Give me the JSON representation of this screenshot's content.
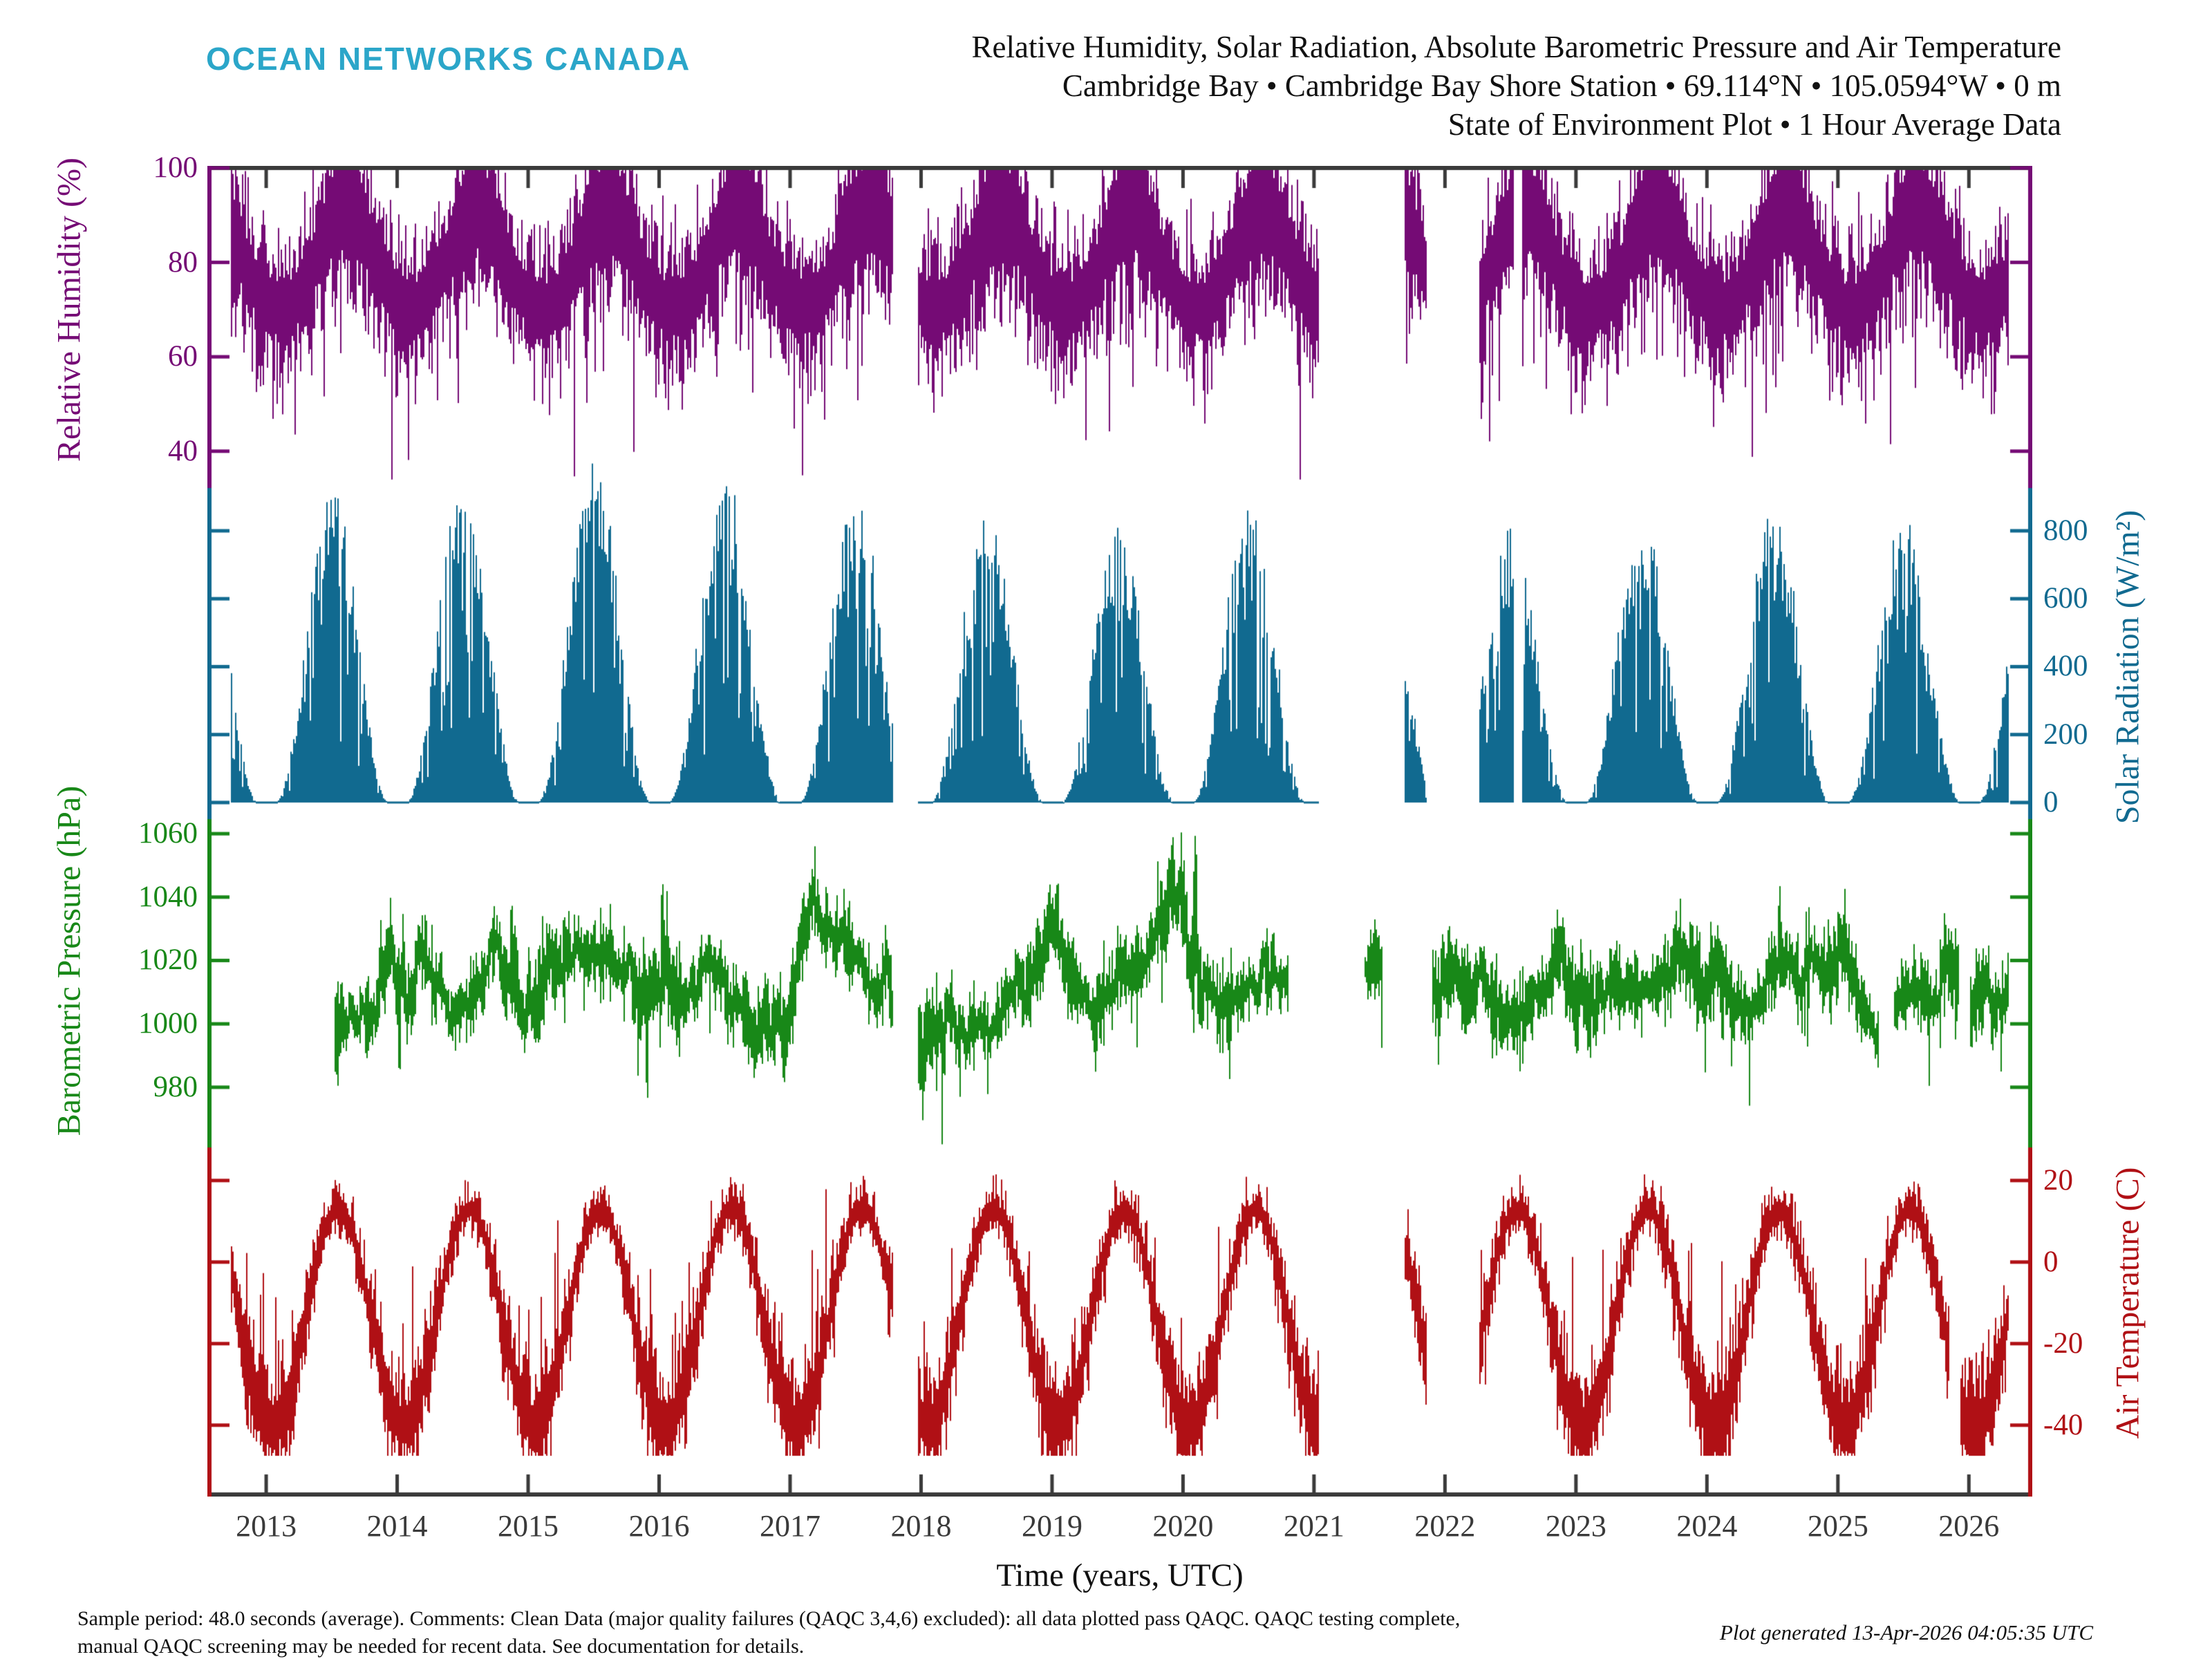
{
  "header": {
    "logo": "OCEAN NETWORKS CANADA",
    "logo_color": "#2BA6C9",
    "title_line1": "Relative Humidity, Solar Radiation, Absolute Barometric Pressure and Air Temperature",
    "title_line2": "Cambridge Bay • Cambridge Bay Shore Station • 69.114°N • 105.0594°W • 0 m",
    "title_line3": "State of Environment Plot • 1 Hour Average Data"
  },
  "footer": {
    "line1": "Sample period: 48.0 seconds (average). Comments: Clean Data (major quality failures (QAQC 3,4,6) excluded): all data plotted pass QAQC. QAQC testing complete,",
    "line2": "manual QAQC screening may be needed for recent data. See documentation for details.",
    "generated": "Plot generated 13-Apr-2026 04:05:35 UTC"
  },
  "chart_data": {
    "type": "scatter",
    "title": "State of Environment Plot, 1 Hour Average Data",
    "x_axis": {
      "label": "Time (years, UTC)",
      "range": [
        2012.551,
        2026.484
      ],
      "ticks": [
        2013,
        2014,
        2015,
        2016,
        2017,
        2018,
        2019,
        2020,
        2021,
        2022,
        2023,
        2024,
        2025,
        2026
      ],
      "axis_color": "#3a3a3a"
    },
    "panels": [
      {
        "id": "humidity",
        "label": "Relative Humidity (%)",
        "color": "#750B75",
        "side": "left",
        "ylim": [
          32.2,
          100.44
        ],
        "ticks": [
          100,
          80,
          60,
          40
        ],
        "coverage": [
          [
            2012.72,
            2017.78
          ],
          [
            2017.97,
            2021.03
          ],
          [
            2021.69,
            2021.86
          ],
          [
            2022.26,
            2022.52
          ],
          [
            2022.58,
            2026.3
          ]
        ],
        "gen": {
          "mean": 79,
          "amp": 9,
          "phase": 0.35,
          "summer_boost": 7,
          "spike_max_depth": 33,
          "clamp": [
            34,
            100.3
          ],
          "summary": "winter band 65-85 %, summer plateau 85-100 %, spring dips to 35-55 %"
        }
      },
      {
        "id": "solar",
        "label": "Solar Radiation (W/m²)",
        "color": "#116A90",
        "side": "right",
        "ylim": [
          -48.9,
          926
        ],
        "ticks": [
          800,
          600,
          400,
          200,
          0
        ],
        "coverage": [
          [
            2012.72,
            2017.78
          ],
          [
            2017.97,
            2021.03
          ],
          [
            2021.69,
            2021.86
          ],
          [
            2022.26,
            2022.52
          ],
          [
            2022.58,
            2026.3
          ]
        ],
        "gen": {
          "c": 0.52,
          "k": 0.58,
          "pow": 1.35,
          "annual_peak": {
            "2012": 780,
            "2013": 800,
            "2014": 830,
            "2015": 880,
            "2016": 810,
            "2017": 800,
            "2018": 730,
            "2019": 700,
            "2020": 750,
            "2021": 700,
            "2022": 700,
            "2023": 730,
            "2024": 740,
            "2025": 700,
            "2026": 760
          },
          "summary": "annual bell humps, zero during polar night (Nov-Jan), June peaks 700-880 W/m2"
        }
      },
      {
        "id": "pressure",
        "label": "Barometric Pressure (hPa)",
        "color": "#188818",
        "side": "left",
        "ylim": [
          961,
          1064.6
        ],
        "ticks": [
          1060,
          1040,
          1020,
          1000,
          980
        ],
        "coverage": [
          [
            2013.52,
            2017.78
          ],
          [
            2017.97,
            2020.8
          ],
          [
            2021.38,
            2021.52
          ],
          [
            2021.9,
            2025.31
          ],
          [
            2025.42,
            2025.92
          ],
          [
            2026.0,
            2026.3
          ]
        ],
        "gen": {
          "mean": 1014.5,
          "clamp": [
            962,
            1063.5
          ],
          "events_high": [
            {
              "year": 2020.09,
              "value": 1062
            },
            {
              "year": 2016.02,
              "value": 1048
            },
            {
              "year": 2024.55,
              "value": 1046
            }
          ],
          "events_low": [
            {
              "year": 2015.9,
              "value": 978
            },
            {
              "year": 2020.35,
              "value": 981
            },
            {
              "year": 2019.33,
              "value": 982
            }
          ],
          "summary": "noisy band mostly 995-1040 hPa around mean 1014.5, extremes 978 and 1062"
        }
      },
      {
        "id": "temperature",
        "label": "Air Temperature (C)",
        "color": "#B01015",
        "side": "right",
        "ylim": [
          -57.5,
          28.1
        ],
        "ticks": [
          20,
          0,
          -20,
          -40
        ],
        "coverage": [
          [
            2012.72,
            2017.78
          ],
          [
            2017.97,
            2021.03
          ],
          [
            2021.69,
            2021.86
          ],
          [
            2022.26,
            2025.85
          ],
          [
            2025.93,
            2026.3
          ]
        ],
        "gen": {
          "mean": -13.5,
          "amp": 26.5,
          "phase": 0.295,
          "clamp": [
            -47.5,
            21.5
          ],
          "summary": "seasonal sinusoid: July maxima +10 to +20 C, January minima -35 to -45 C"
        }
      }
    ]
  }
}
